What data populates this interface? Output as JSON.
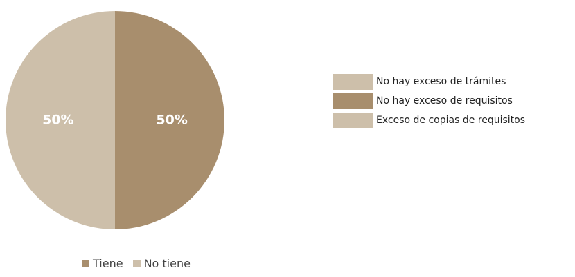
{
  "chart_data": {
    "type": "pie",
    "title": "",
    "slices": [
      {
        "name": "Tiene",
        "value": 50,
        "label": "50%",
        "color": "#a88e6d"
      },
      {
        "name": "No tiene",
        "value": 50,
        "label": "50%",
        "color": "#cdbfaa"
      }
    ],
    "legend": {
      "placement": "bottom-left",
      "entries": [
        {
          "label": "Tiene",
          "color": "#a88e6d"
        },
        {
          "label": "No tiene",
          "color": "#cdbfaa"
        }
      ]
    }
  },
  "secondary_legend": {
    "placement": "right",
    "items": [
      {
        "label": "No hay exceso de trámites",
        "color": "#cdbfaa"
      },
      {
        "label": "No hay exceso de requisitos",
        "color": "#a88e6d"
      },
      {
        "label": "Exceso de copias de requisitos",
        "color": "#cdbfaa"
      }
    ]
  }
}
